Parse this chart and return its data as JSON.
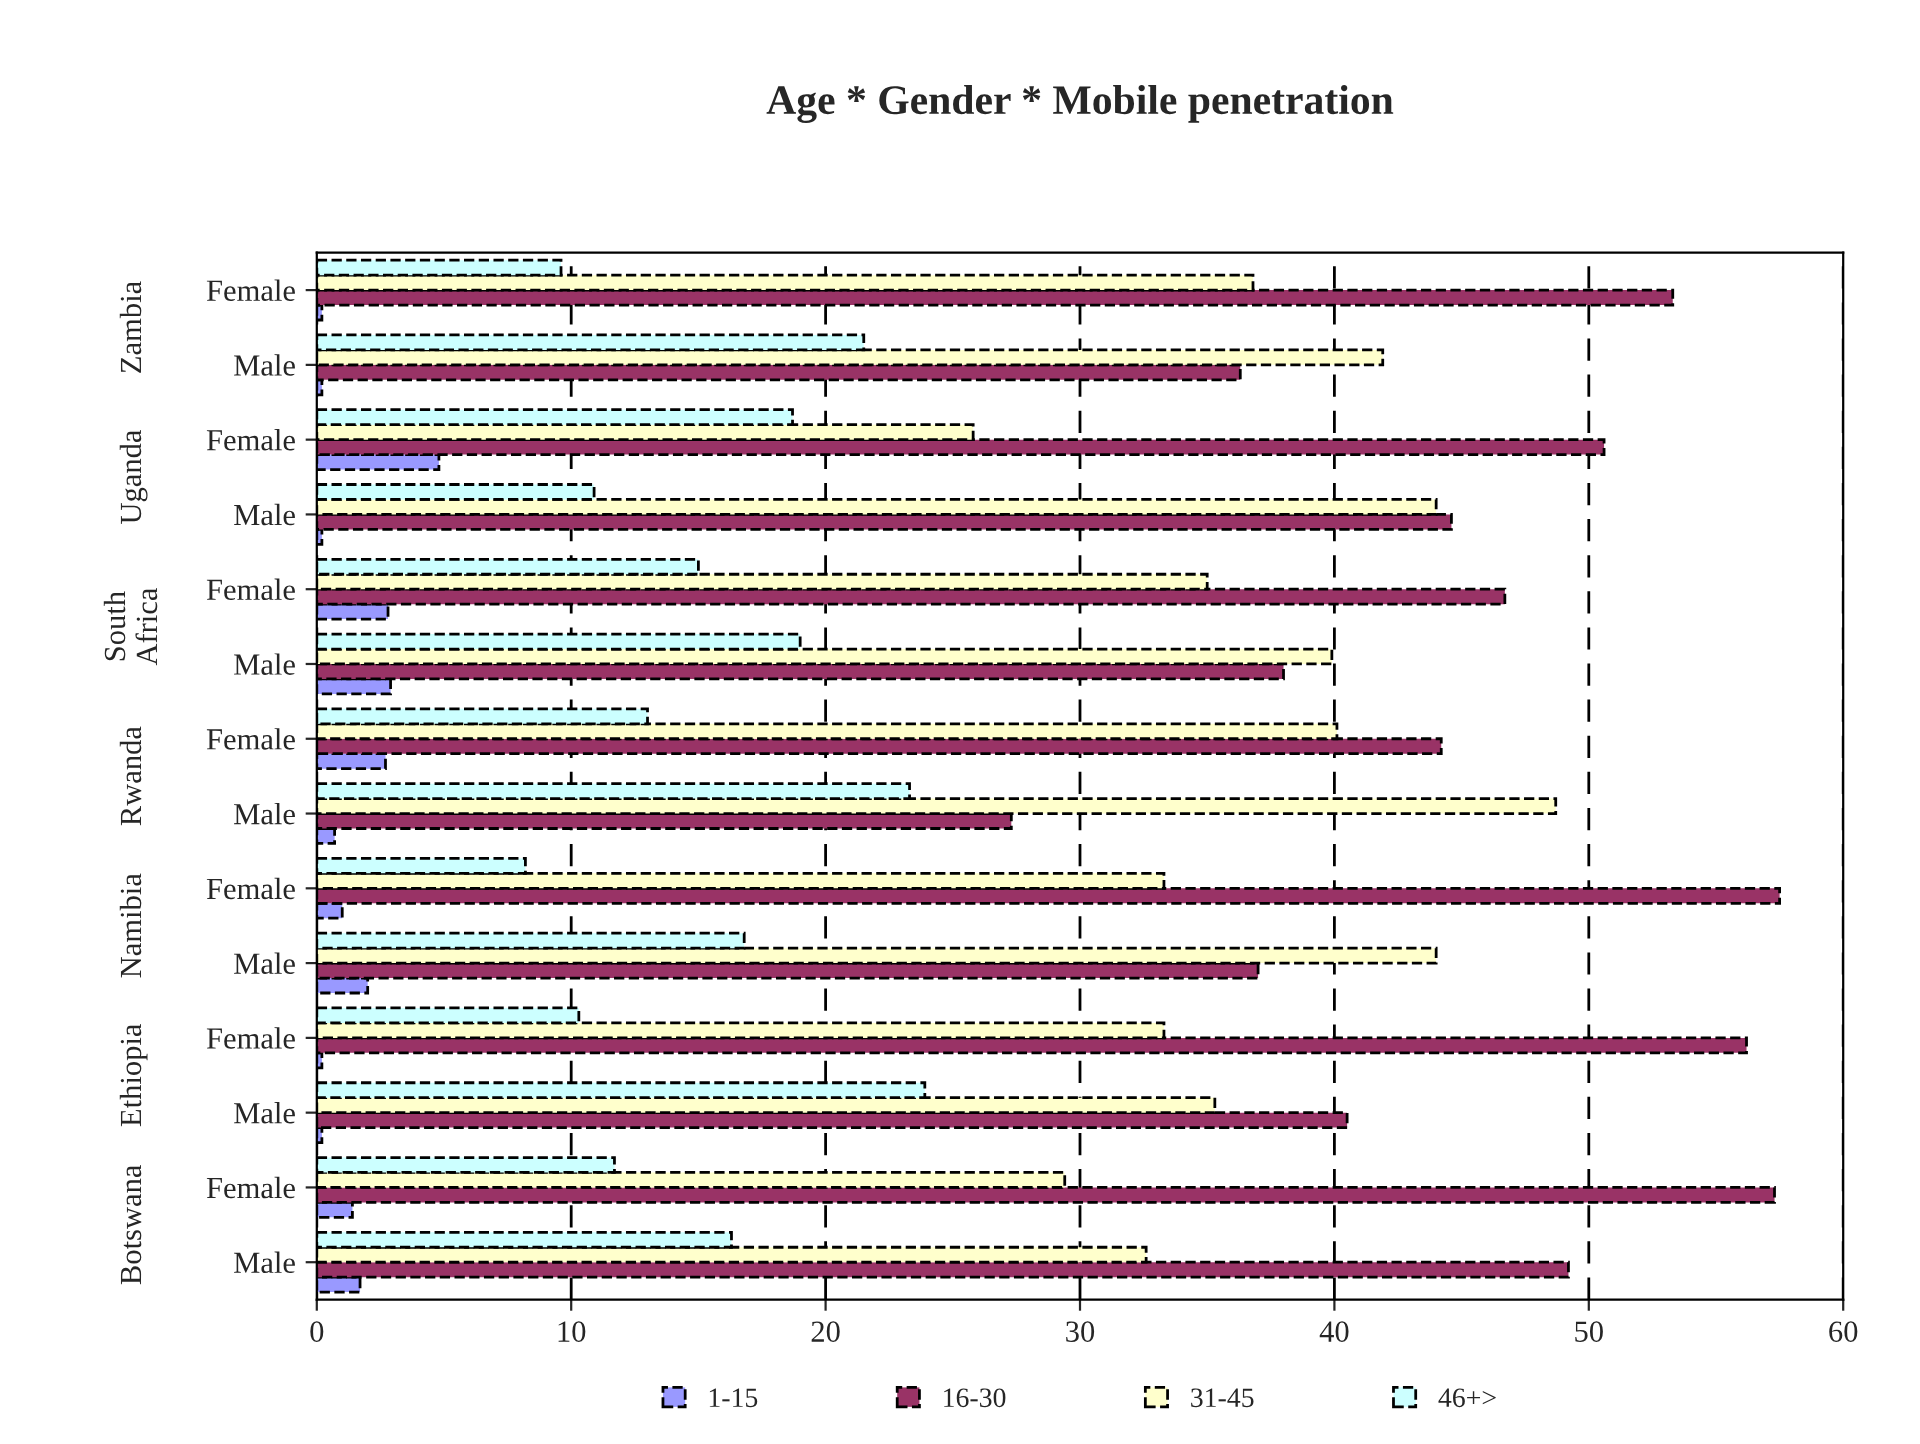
{
  "chart_data": {
    "type": "bar",
    "orientation": "horizontal",
    "title": "Age * Gender * Mobile penetration",
    "categories": [
      "Female",
      "Male",
      "Female",
      "Male",
      "Female",
      "Male",
      "Female",
      "Male",
      "Female",
      "Male",
      "Female",
      "Male",
      "Female",
      "Male"
    ],
    "annotations": [
      "Zambia",
      "Uganda",
      "South\nAfrica",
      "Rwanda",
      "Namibia",
      "Ethiopia",
      "Botswana"
    ],
    "series": [
      {
        "name": "1-15",
        "color": "#9999ff",
        "values": [
          0.2,
          0.2,
          4.8,
          0.2,
          2.8,
          2.9,
          2.7,
          0.7,
          1.0,
          2.0,
          0.2,
          0.2,
          1.4,
          1.7
        ]
      },
      {
        "name": "16-30",
        "color": "#993366",
        "values": [
          53.3,
          36.3,
          50.6,
          44.6,
          46.7,
          38.0,
          44.2,
          27.3,
          57.5,
          37.0,
          56.2,
          40.5,
          57.3,
          49.2
        ]
      },
      {
        "name": "31-45",
        "color": "#ffffcc",
        "values": [
          36.8,
          41.9,
          25.8,
          44.0,
          35.0,
          39.9,
          40.1,
          48.7,
          33.3,
          44.0,
          33.3,
          35.3,
          29.4,
          32.6
        ]
      },
      {
        "name": "46+>",
        "color": "#ccffff",
        "values": [
          9.6,
          21.5,
          18.7,
          10.9,
          15.0,
          19.0,
          13.0,
          23.3,
          8.2,
          16.8,
          10.3,
          23.9,
          11.7,
          16.3
        ]
      }
    ],
    "xlim": [
      0,
      60
    ],
    "xticks": [
      0,
      10,
      20,
      30,
      40,
      50,
      60
    ],
    "grid": "x",
    "legend": "bottom"
  }
}
